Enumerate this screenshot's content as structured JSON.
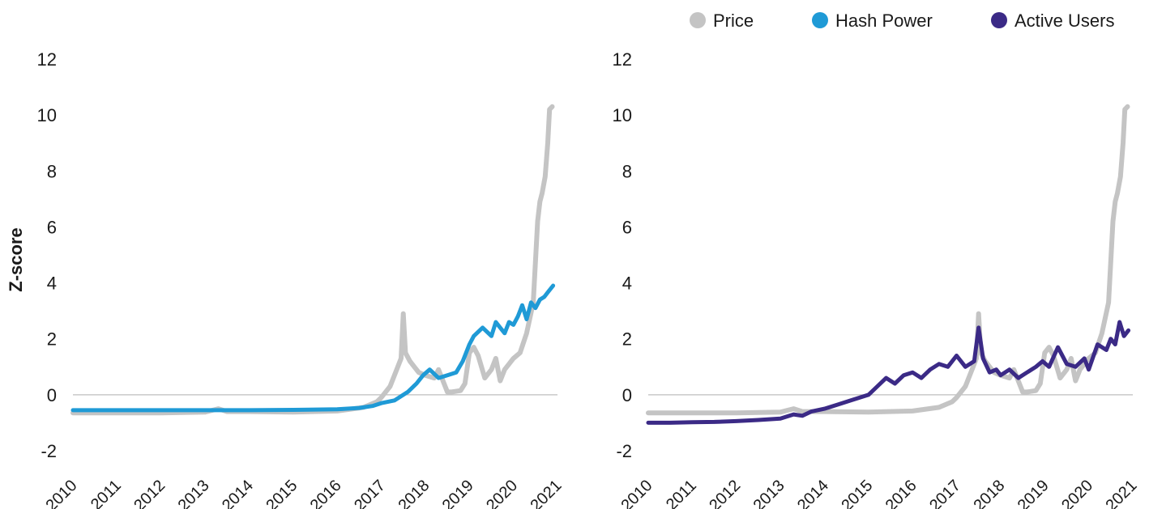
{
  "legend": [
    {
      "name": "Price",
      "color": "#c4c4c4"
    },
    {
      "name": "Hash Power",
      "color": "#1f9ad6"
    },
    {
      "name": "Active Users",
      "color": "#3b2a86"
    }
  ],
  "chart_data": [
    {
      "type": "line",
      "ylabel": "Z-score",
      "ylim": [
        -2,
        12
      ],
      "xlim": [
        2010,
        2021
      ],
      "yticks": [
        "-2",
        "0",
        "2",
        "4",
        "6",
        "8",
        "10",
        "12"
      ],
      "xticks": [
        "2010",
        "2011",
        "2012",
        "2013",
        "2014",
        "2015",
        "2016",
        "2017",
        "2018",
        "2019",
        "2020",
        "2021"
      ],
      "series": [
        {
          "name": "Price",
          "color": "#c4c4c4",
          "x": [
            2010.0,
            2011.0,
            2012.0,
            2013.0,
            2013.3,
            2013.5,
            2014.0,
            2015.0,
            2016.0,
            2016.6,
            2016.9,
            2017.0,
            2017.2,
            2017.35,
            2017.45,
            2017.5,
            2017.55,
            2017.65,
            2017.75,
            2017.85,
            2018.0,
            2018.2,
            2018.3,
            2018.5,
            2018.6,
            2018.8,
            2018.9,
            2019.0,
            2019.1,
            2019.2,
            2019.35,
            2019.5,
            2019.6,
            2019.7,
            2019.8,
            2019.9,
            2020.0,
            2020.15,
            2020.3,
            2020.45,
            2020.55,
            2020.6,
            2020.65,
            2020.72,
            2020.78,
            2020.82,
            2020.88
          ],
          "y": [
            -0.65,
            -0.65,
            -0.65,
            -0.62,
            -0.5,
            -0.6,
            -0.6,
            -0.62,
            -0.58,
            -0.45,
            -0.25,
            -0.1,
            0.3,
            0.9,
            1.3,
            2.9,
            1.5,
            1.2,
            1.0,
            0.8,
            0.7,
            0.6,
            0.9,
            0.1,
            0.1,
            0.15,
            0.4,
            1.5,
            1.7,
            1.4,
            0.6,
            0.9,
            1.3,
            0.5,
            0.9,
            1.1,
            1.3,
            1.5,
            2.2,
            3.3,
            6.2,
            6.9,
            7.2,
            7.8,
            9.0,
            10.2,
            10.3
          ]
        },
        {
          "name": "Hash Power",
          "color": "#1f9ad6",
          "x": [
            2010.0,
            2011.0,
            2012.0,
            2013.0,
            2014.0,
            2015.0,
            2016.0,
            2016.5,
            2016.8,
            2017.0,
            2017.3,
            2017.6,
            2017.8,
            2017.95,
            2018.1,
            2018.3,
            2018.5,
            2018.7,
            2018.85,
            2019.0,
            2019.1,
            2019.3,
            2019.5,
            2019.6,
            2019.7,
            2019.8,
            2019.9,
            2020.0,
            2020.1,
            2020.2,
            2020.3,
            2020.4,
            2020.5,
            2020.6,
            2020.7,
            2020.8,
            2020.9
          ],
          "y": [
            -0.55,
            -0.55,
            -0.55,
            -0.55,
            -0.55,
            -0.54,
            -0.52,
            -0.47,
            -0.4,
            -0.3,
            -0.2,
            0.1,
            0.4,
            0.7,
            0.9,
            0.6,
            0.7,
            0.8,
            1.2,
            1.8,
            2.1,
            2.4,
            2.1,
            2.6,
            2.4,
            2.2,
            2.6,
            2.5,
            2.8,
            3.2,
            2.7,
            3.3,
            3.1,
            3.4,
            3.5,
            3.7,
            3.9
          ]
        }
      ]
    },
    {
      "type": "line",
      "ylabel": "",
      "ylim": [
        -2,
        12
      ],
      "xlim": [
        2010,
        2021
      ],
      "yticks": [
        "-2",
        "0",
        "2",
        "4",
        "6",
        "8",
        "10",
        "12"
      ],
      "xticks": [
        "2010",
        "2011",
        "2012",
        "2013",
        "2014",
        "2015",
        "2016",
        "2017",
        "2018",
        "2019",
        "2020",
        "2021"
      ],
      "series": [
        {
          "name": "Price",
          "color": "#c4c4c4",
          "x": [
            2010.0,
            2011.0,
            2012.0,
            2013.0,
            2013.3,
            2013.5,
            2014.0,
            2015.0,
            2016.0,
            2016.6,
            2016.9,
            2017.0,
            2017.2,
            2017.35,
            2017.45,
            2017.5,
            2017.55,
            2017.65,
            2017.75,
            2017.85,
            2018.0,
            2018.2,
            2018.3,
            2018.5,
            2018.6,
            2018.8,
            2018.9,
            2019.0,
            2019.1,
            2019.2,
            2019.35,
            2019.5,
            2019.6,
            2019.7,
            2019.8,
            2019.9,
            2020.0,
            2020.15,
            2020.3,
            2020.45,
            2020.55,
            2020.6,
            2020.65,
            2020.72,
            2020.78,
            2020.82,
            2020.88
          ],
          "y": [
            -0.65,
            -0.65,
            -0.65,
            -0.62,
            -0.5,
            -0.6,
            -0.6,
            -0.62,
            -0.58,
            -0.45,
            -0.25,
            -0.1,
            0.3,
            0.9,
            1.3,
            2.9,
            1.5,
            1.2,
            1.0,
            0.8,
            0.7,
            0.6,
            0.9,
            0.1,
            0.1,
            0.15,
            0.4,
            1.5,
            1.7,
            1.4,
            0.6,
            0.9,
            1.3,
            0.5,
            0.9,
            1.1,
            1.3,
            1.5,
            2.2,
            3.3,
            6.2,
            6.9,
            7.2,
            7.8,
            9.0,
            10.2,
            10.3
          ]
        },
        {
          "name": "Active Users",
          "color": "#3b2a86",
          "x": [
            2010.0,
            2010.5,
            2011.0,
            2011.5,
            2012.0,
            2012.5,
            2013.0,
            2013.3,
            2013.5,
            2013.7,
            2014.0,
            2014.3,
            2014.6,
            2015.0,
            2015.2,
            2015.4,
            2015.6,
            2015.8,
            2016.0,
            2016.2,
            2016.4,
            2016.6,
            2016.8,
            2017.0,
            2017.2,
            2017.4,
            2017.5,
            2017.6,
            2017.75,
            2017.9,
            2018.0,
            2018.2,
            2018.4,
            2018.6,
            2018.8,
            2018.95,
            2019.1,
            2019.3,
            2019.5,
            2019.7,
            2019.9,
            2020.0,
            2020.2,
            2020.4,
            2020.5,
            2020.6,
            2020.7,
            2020.8,
            2020.9
          ],
          "y": [
            -1.0,
            -1.0,
            -0.98,
            -0.97,
            -0.94,
            -0.9,
            -0.85,
            -0.7,
            -0.75,
            -0.6,
            -0.5,
            -0.35,
            -0.2,
            0.0,
            0.3,
            0.6,
            0.4,
            0.7,
            0.8,
            0.6,
            0.9,
            1.1,
            1.0,
            1.4,
            1.0,
            1.2,
            2.4,
            1.3,
            0.8,
            0.9,
            0.7,
            0.9,
            0.6,
            0.8,
            1.0,
            1.2,
            1.0,
            1.7,
            1.1,
            1.0,
            1.3,
            0.9,
            1.8,
            1.6,
            2.0,
            1.8,
            2.6,
            2.1,
            2.3
          ]
        }
      ]
    }
  ]
}
